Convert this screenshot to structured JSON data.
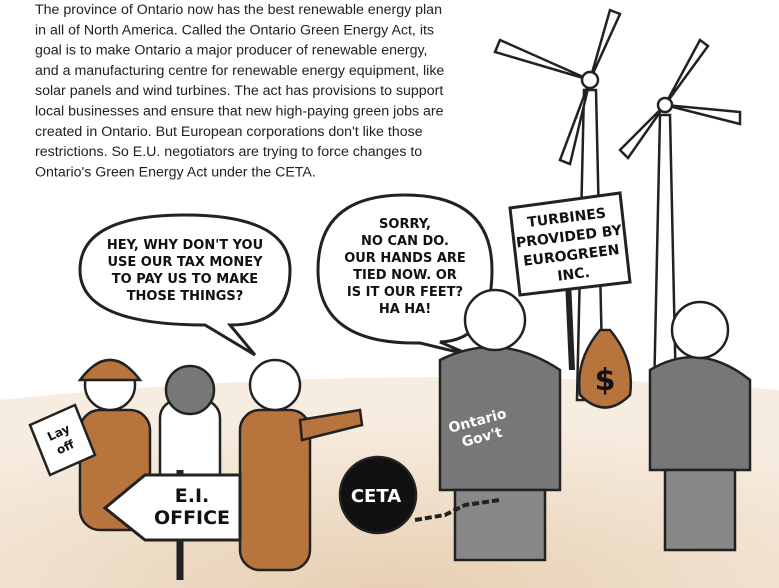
{
  "paragraph": {
    "lines": [
      "The province of Ontario now has the best renewable energy plan",
      "in all of North America. Called the Ontario Green Energy Act, its",
      "goal is to make Ontario a major producer of renewable energy,",
      "and a manufacturing centre for renewable energy equipment, like",
      "solar panels and wind turbines. The act has provisions to support",
      "local businesses and ensure that new high-paying green jobs are",
      "created in Ontario. But European corporations don't like those",
      "restrictions. So E.U. negotiators are trying to force changes to",
      "Ontario's Green Energy Act under the CETA."
    ]
  },
  "bubbles": [
    {
      "lines": [
        "HEY, WHY DON'T YOU",
        "USE OUR TAX MONEY",
        "TO PAY US TO MAKE",
        "THOSE THINGS?"
      ]
    },
    {
      "lines": [
        "SORRY,",
        "NO CAN DO.",
        "OUR HANDS ARE",
        "TIED NOW. OR",
        "IS IT OUR FEET?",
        "HA HA!"
      ]
    }
  ],
  "sign": {
    "lines": [
      "TURBINES",
      "PROVIDED BY",
      "EUROGREEN",
      "INC."
    ]
  },
  "labels": {
    "layoff": [
      "Lay",
      "off"
    ],
    "office": [
      "E.I.",
      "OFFICE"
    ],
    "government": [
      "Ontario",
      "Gov't"
    ],
    "ball": "CETA",
    "bag": "$"
  }
}
